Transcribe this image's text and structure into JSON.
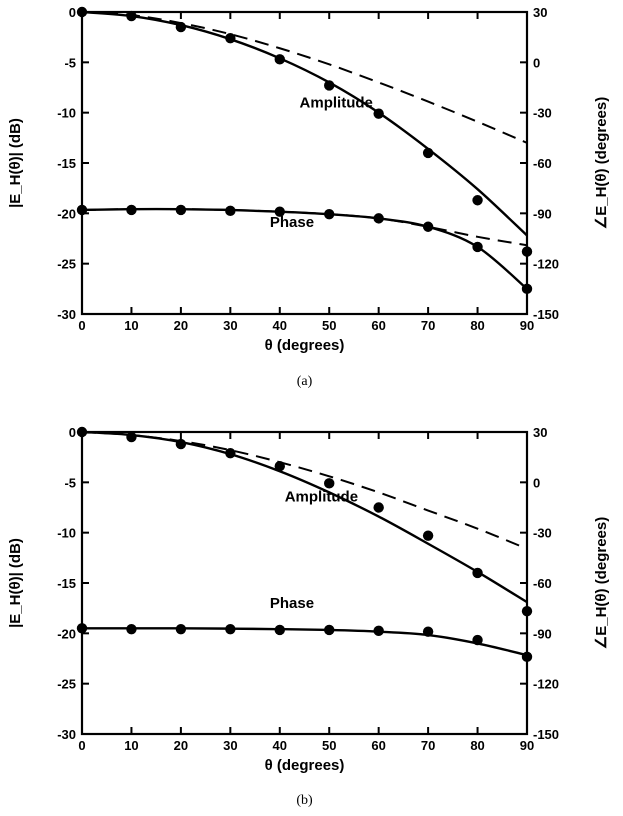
{
  "chart_data": [
    {
      "type": "line",
      "caption": "(a)",
      "xlabel": "θ (degrees)",
      "ylabel_left": "|E_H(θ)| (dB)",
      "ylabel_right": "∠E_H(θ) (degrees)",
      "xlim": [
        0,
        90
      ],
      "ylim_left": [
        -30,
        0
      ],
      "ylim_right": [
        -150,
        30
      ],
      "xticks": [
        0,
        10,
        20,
        30,
        40,
        50,
        60,
        70,
        80,
        90
      ],
      "yticks_left": [
        0,
        -5,
        -10,
        -15,
        -20,
        -25,
        -30
      ],
      "yticks_right": [
        30,
        0,
        -30,
        -60,
        -90,
        -120,
        -150
      ],
      "grid": false,
      "series": [
        {
          "name": "Amplitude",
          "axis": "left",
          "style": "solid",
          "x": [
            0,
            10,
            20,
            30,
            40,
            50,
            60,
            70,
            80,
            90
          ],
          "y": [
            0,
            -0.4,
            -1.3,
            -2.7,
            -4.6,
            -7.0,
            -10.0,
            -13.6,
            -17.6,
            -22.2
          ]
        },
        {
          "axis": "left",
          "style": "dashed",
          "x": [
            0,
            10,
            20,
            30,
            40,
            50,
            60,
            70,
            80,
            90
          ],
          "y": [
            0,
            -0.3,
            -1.1,
            -2.2,
            -3.6,
            -5.2,
            -7.0,
            -8.9,
            -10.9,
            -13.0
          ]
        },
        {
          "axis": "left",
          "style": "markers",
          "x": [
            0,
            10,
            20,
            30,
            40,
            50,
            60,
            70,
            80,
            90
          ],
          "y": [
            0,
            -0.4,
            -1.5,
            -2.6,
            -4.7,
            -7.3,
            -10.1,
            -14.0,
            -18.7,
            -23.8
          ]
        },
        {
          "name": "Phase",
          "axis": "right",
          "style": "solid",
          "x": [
            0,
            10,
            20,
            30,
            40,
            50,
            60,
            70,
            80,
            90
          ],
          "y": [
            -88,
            -87.5,
            -87.5,
            -88,
            -89,
            -90.5,
            -93,
            -98,
            -110,
            -135
          ]
        },
        {
          "axis": "right",
          "style": "dashed",
          "x": [
            0,
            10,
            20,
            30,
            40,
            50,
            60,
            70,
            80,
            90
          ],
          "y": [
            -88,
            -87.5,
            -87.5,
            -88,
            -89,
            -90.5,
            -93,
            -98,
            -104,
            -109
          ]
        },
        {
          "axis": "right",
          "style": "markers",
          "x": [
            0,
            10,
            20,
            30,
            40,
            50,
            60,
            70,
            80,
            90
          ],
          "y": [
            -88,
            -88,
            -88,
            -88.5,
            -89,
            -90.5,
            -93,
            -98,
            -110,
            -135
          ]
        }
      ],
      "annotations": [
        {
          "text": "Amplitude",
          "x": 44,
          "y": -9.5,
          "axis": "left"
        },
        {
          "text": "Phase",
          "x": 38,
          "y": -98,
          "axis": "right"
        }
      ]
    },
    {
      "type": "line",
      "caption": "(b)",
      "xlabel": "θ (degrees)",
      "ylabel_left": "|E_H(θ)| (dB)",
      "ylabel_right": "∠E_H(θ) (degrees)",
      "xlim": [
        0,
        90
      ],
      "ylim_left": [
        -30,
        0
      ],
      "ylim_right": [
        -150,
        30
      ],
      "xticks": [
        0,
        10,
        20,
        30,
        40,
        50,
        60,
        70,
        80,
        90
      ],
      "yticks_left": [
        0,
        -5,
        -10,
        -15,
        -20,
        -25,
        -30
      ],
      "yticks_right": [
        30,
        0,
        -30,
        -60,
        -90,
        -120,
        -150
      ],
      "grid": false,
      "series": [
        {
          "name": "Amplitude",
          "axis": "left",
          "style": "solid",
          "x": [
            0,
            10,
            20,
            30,
            40,
            50,
            60,
            70,
            80,
            90
          ],
          "y": [
            0,
            -0.3,
            -1.0,
            -2.2,
            -3.9,
            -6.0,
            -8.4,
            -11.1,
            -13.9,
            -16.9
          ]
        },
        {
          "axis": "left",
          "style": "dashed",
          "x": [
            0,
            10,
            20,
            30,
            40,
            50,
            60,
            70,
            80,
            90
          ],
          "y": [
            0,
            -0.3,
            -0.9,
            -1.8,
            -3.0,
            -4.4,
            -6.0,
            -7.8,
            -9.6,
            -11.6
          ]
        },
        {
          "axis": "left",
          "style": "markers",
          "x": [
            0,
            10,
            20,
            30,
            40,
            50,
            60,
            70,
            80,
            90
          ],
          "y": [
            0,
            -0.5,
            -1.2,
            -2.1,
            -3.4,
            -5.1,
            -7.5,
            -10.3,
            -14.0,
            -17.8
          ]
        },
        {
          "name": "Phase",
          "axis": "right",
          "style": "solid",
          "x": [
            0,
            10,
            20,
            30,
            40,
            50,
            60,
            70,
            80,
            90
          ],
          "y": [
            -87,
            -87,
            -87,
            -87.2,
            -87.5,
            -88,
            -89,
            -91,
            -96,
            -103
          ]
        },
        {
          "axis": "right",
          "style": "markers",
          "x": [
            0,
            10,
            20,
            30,
            40,
            50,
            60,
            70,
            80,
            90
          ],
          "y": [
            -87,
            -87.5,
            -87.5,
            -87.5,
            -88,
            -88,
            -88.5,
            -89,
            -94,
            -104
          ]
        }
      ],
      "annotations": [
        {
          "text": "Amplitude",
          "x": 41,
          "y": -6.9,
          "axis": "left"
        },
        {
          "text": "Phase",
          "x": 38,
          "y": -75,
          "axis": "right"
        }
      ]
    }
  ]
}
